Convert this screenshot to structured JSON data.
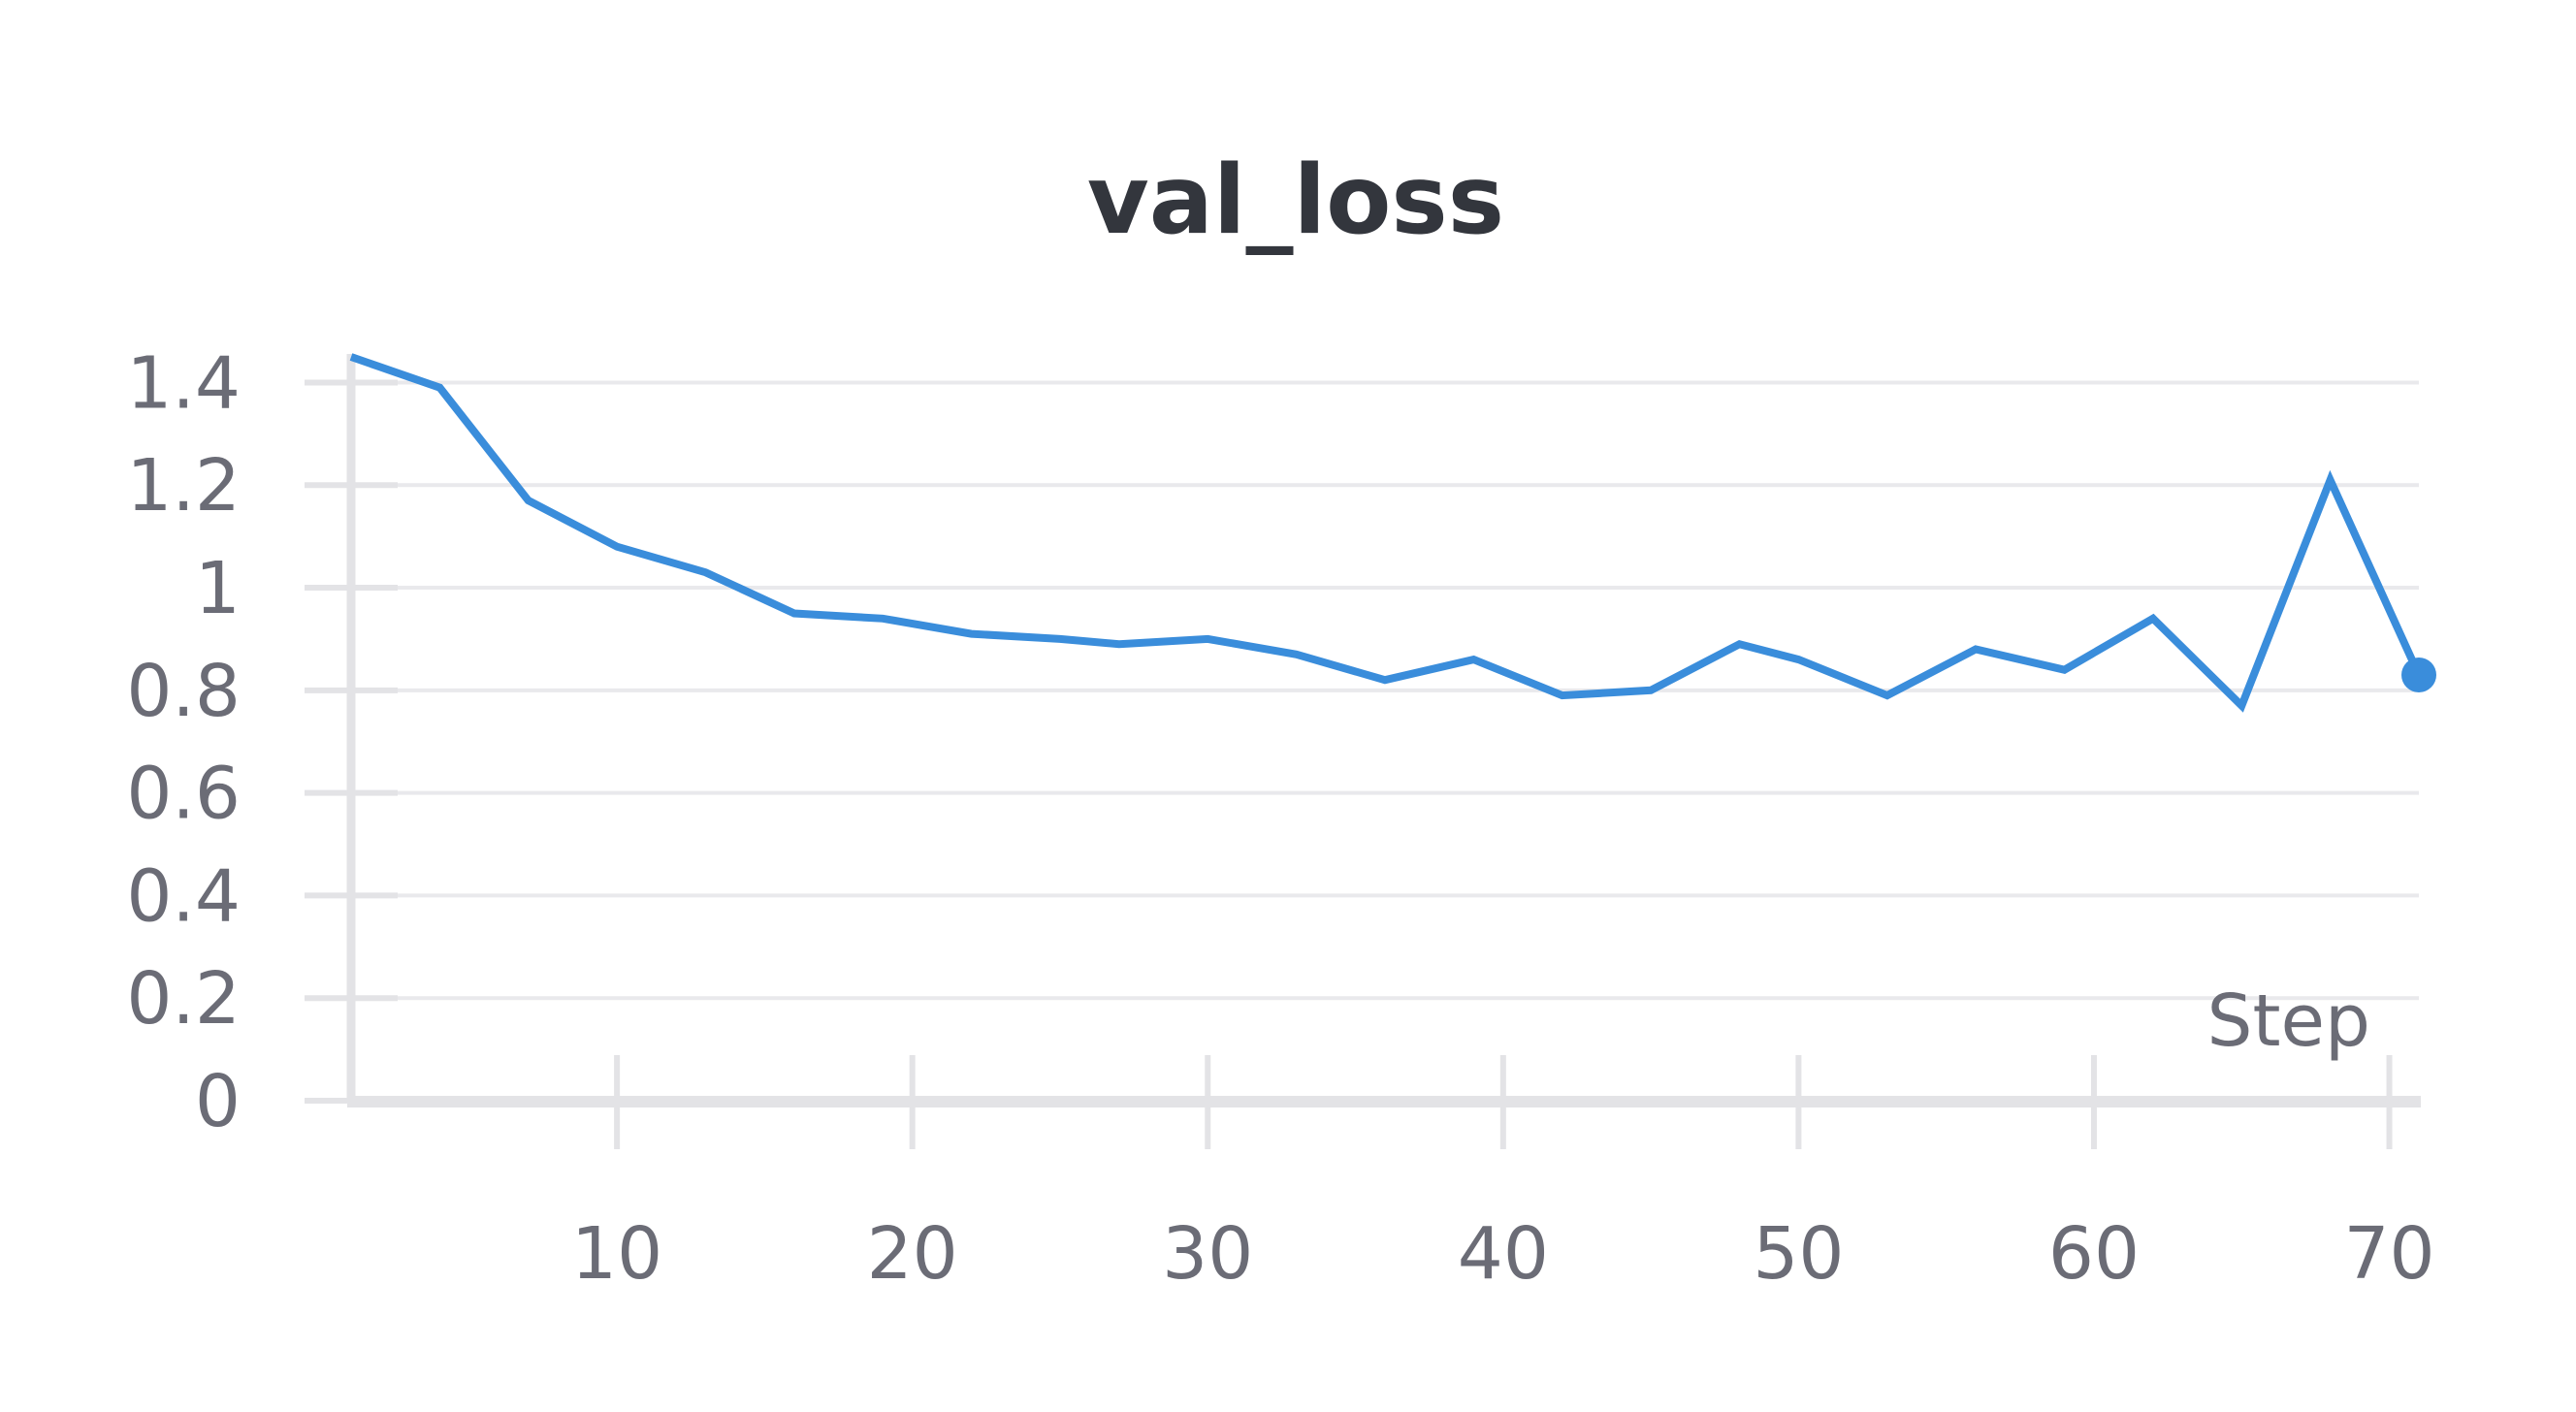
{
  "chart_data": {
    "type": "line",
    "title": "val_loss",
    "xlabel": "Step",
    "ylabel": "",
    "xlim": [
      1,
      71
    ],
    "ylim": [
      0,
      1.45
    ],
    "x_ticks": [
      10,
      20,
      30,
      40,
      50,
      60,
      70
    ],
    "y_ticks": [
      0,
      0.2,
      0.4,
      0.6,
      0.8,
      1,
      1.2,
      1.4
    ],
    "x_tick_labels": [
      "10",
      "20",
      "30",
      "40",
      "50",
      "60",
      "70"
    ],
    "y_tick_labels": [
      "0",
      "0.2",
      "0.4",
      "0.6",
      "0.8",
      "1",
      "1.2",
      "1.4"
    ],
    "grid": true,
    "line_color": "#3a8ddb",
    "series": [
      {
        "x": [
          1,
          4,
          7,
          10,
          13,
          16,
          19,
          22,
          25,
          27,
          30,
          33,
          36,
          39,
          42,
          45,
          48,
          50,
          53,
          56,
          59,
          62,
          65,
          68,
          71
        ],
        "y": [
          1.45,
          1.39,
          1.17,
          1.08,
          1.03,
          0.95,
          0.94,
          0.91,
          0.9,
          0.89,
          0.9,
          0.87,
          0.82,
          0.86,
          0.79,
          0.8,
          0.89,
          0.86,
          0.79,
          0.88,
          0.84,
          0.94,
          0.77,
          1.21,
          0.83
        ]
      }
    ]
  }
}
